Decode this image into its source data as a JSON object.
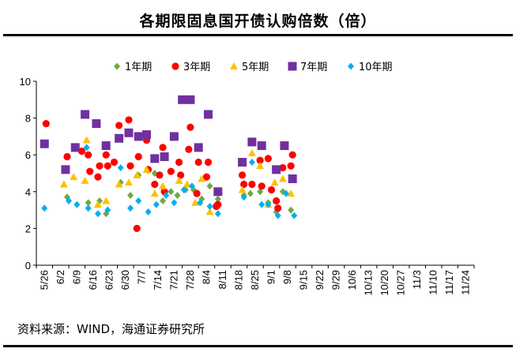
{
  "title": "各期限固息国开债认购倍数（倍）",
  "source": "资料来源：WIND，海通证券研究所",
  "chart_data": {
    "type": "scatter",
    "title": "各期限固息国开债认购倍数（倍）",
    "xlabel": "",
    "ylabel": "",
    "ylim": [
      0,
      10
    ],
    "yticks": [
      0,
      2,
      4,
      6,
      8,
      10
    ],
    "categories": [
      "5/26",
      "6/2",
      "6/9",
      "6/16",
      "6/23",
      "6/30",
      "7/7",
      "7/14",
      "7/21",
      "7/28",
      "8/4",
      "8/11",
      "8/18",
      "8/25",
      "9/1",
      "9/8",
      "9/15",
      "9/22",
      "9/29",
      "10/6",
      "10/13",
      "10/20",
      "10/27",
      "11/3",
      "11/10",
      "11/17",
      "11/24"
    ],
    "legend_position": "top",
    "series": [
      {
        "name": "1年期",
        "color": "#6FA843",
        "marker": "diamond",
        "points": [
          [
            1.4,
            3.7
          ],
          [
            2.3,
            6.2
          ],
          [
            2.7,
            3.4
          ],
          [
            3.4,
            3.5
          ],
          [
            3.8,
            2.8
          ],
          [
            4.7,
            4.5
          ],
          [
            5.3,
            3.8
          ],
          [
            5.8,
            4.9
          ],
          [
            6.8,
            5.0
          ],
          [
            7.3,
            3.5
          ],
          [
            7.8,
            4.0
          ],
          [
            8.2,
            3.8
          ],
          [
            8.7,
            4.1
          ],
          [
            9.2,
            4.1
          ],
          [
            9.7,
            3.6
          ],
          [
            10.2,
            4.3
          ],
          [
            10.7,
            3.6
          ],
          [
            12.3,
            3.8
          ],
          [
            12.7,
            3.9
          ],
          [
            13.3,
            4.0
          ],
          [
            13.8,
            3.4
          ],
          [
            14.3,
            2.9
          ],
          [
            14.7,
            4.0
          ],
          [
            15.2,
            3.0
          ]
        ]
      },
      {
        "name": "3年期",
        "color": "#FF0000",
        "marker": "circle",
        "points": [
          [
            0.1,
            7.7
          ],
          [
            1.4,
            5.9
          ],
          [
            2.3,
            6.2
          ],
          [
            2.7,
            6.0
          ],
          [
            2.8,
            5.1
          ],
          [
            3.3,
            4.8
          ],
          [
            3.4,
            5.4
          ],
          [
            3.8,
            6.0
          ],
          [
            3.9,
            5.4
          ],
          [
            4.3,
            5.6
          ],
          [
            4.6,
            7.6
          ],
          [
            5.2,
            7.9
          ],
          [
            5.3,
            5.4
          ],
          [
            5.7,
            2.0
          ],
          [
            5.8,
            5.9
          ],
          [
            6.3,
            6.8
          ],
          [
            6.4,
            5.2
          ],
          [
            6.8,
            4.4
          ],
          [
            7.1,
            4.9
          ],
          [
            7.3,
            6.4
          ],
          [
            7.4,
            4.0
          ],
          [
            7.8,
            5.1
          ],
          [
            8.3,
            5.6
          ],
          [
            8.4,
            4.9
          ],
          [
            8.9,
            6.3
          ],
          [
            9.0,
            7.5
          ],
          [
            9.4,
            3.9
          ],
          [
            9.5,
            5.6
          ],
          [
            10.0,
            4.8
          ],
          [
            10.1,
            5.6
          ],
          [
            10.6,
            3.2
          ],
          [
            10.7,
            3.3
          ],
          [
            12.2,
            4.9
          ],
          [
            12.3,
            4.4
          ],
          [
            12.8,
            4.4
          ],
          [
            13.3,
            5.7
          ],
          [
            13.4,
            4.3
          ],
          [
            13.8,
            5.8
          ],
          [
            14.0,
            4.1
          ],
          [
            14.3,
            3.5
          ],
          [
            14.4,
            3.1
          ],
          [
            14.7,
            5.3
          ],
          [
            15.2,
            5.4
          ],
          [
            15.3,
            6.0
          ]
        ]
      },
      {
        "name": "5年期",
        "color": "#FFC000",
        "marker": "triangle",
        "points": [
          [
            1.2,
            4.4
          ],
          [
            1.8,
            4.8
          ],
          [
            2.5,
            4.6
          ],
          [
            2.6,
            6.8
          ],
          [
            3.3,
            3.3
          ],
          [
            3.8,
            3.5
          ],
          [
            4.6,
            4.4
          ],
          [
            5.2,
            4.5
          ],
          [
            5.7,
            4.9
          ],
          [
            6.3,
            5.2
          ],
          [
            6.8,
            3.9
          ],
          [
            7.3,
            4.3
          ],
          [
            8.3,
            4.6
          ],
          [
            8.8,
            4.4
          ],
          [
            9.3,
            3.4
          ],
          [
            9.7,
            4.7
          ],
          [
            10.2,
            2.9
          ],
          [
            12.2,
            4.1
          ],
          [
            12.8,
            6.1
          ],
          [
            13.3,
            5.4
          ],
          [
            13.8,
            3.3
          ],
          [
            14.2,
            4.5
          ],
          [
            14.7,
            4.7
          ],
          [
            15.2,
            3.9
          ]
        ]
      },
      {
        "name": "7年期",
        "color": "#7030A0",
        "marker": "square",
        "points": [
          [
            0.0,
            6.6
          ],
          [
            1.3,
            5.2
          ],
          [
            1.9,
            6.4
          ],
          [
            2.5,
            8.2
          ],
          [
            3.2,
            7.7
          ],
          [
            3.8,
            6.5
          ],
          [
            4.6,
            6.9
          ],
          [
            5.2,
            7.2
          ],
          [
            5.8,
            7.0
          ],
          [
            6.3,
            7.1
          ],
          [
            6.8,
            5.8
          ],
          [
            7.4,
            5.9
          ],
          [
            8.0,
            7.0
          ],
          [
            8.5,
            9.0
          ],
          [
            9.0,
            9.0
          ],
          [
            9.5,
            6.4
          ],
          [
            10.1,
            8.2
          ],
          [
            10.7,
            4.0
          ],
          [
            12.2,
            5.6
          ],
          [
            12.8,
            6.7
          ],
          [
            13.4,
            6.5
          ],
          [
            14.3,
            5.2
          ],
          [
            14.8,
            6.5
          ],
          [
            15.3,
            4.7
          ]
        ]
      },
      {
        "name": "10年期",
        "color": "#00B0F0",
        "marker": "diamond",
        "points": [
          [
            0.0,
            3.1
          ],
          [
            1.5,
            3.5
          ],
          [
            2.0,
            3.3
          ],
          [
            2.6,
            6.4
          ],
          [
            2.7,
            3.1
          ],
          [
            3.3,
            2.8
          ],
          [
            3.9,
            3.0
          ],
          [
            4.7,
            5.3
          ],
          [
            5.3,
            3.1
          ],
          [
            5.8,
            3.5
          ],
          [
            6.4,
            2.9
          ],
          [
            6.9,
            3.3
          ],
          [
            7.5,
            3.8
          ],
          [
            8.0,
            3.4
          ],
          [
            8.6,
            4.1
          ],
          [
            9.1,
            4.3
          ],
          [
            9.6,
            3.4
          ],
          [
            10.2,
            3.2
          ],
          [
            10.7,
            2.8
          ],
          [
            12.3,
            3.7
          ],
          [
            12.8,
            5.6
          ],
          [
            13.4,
            3.3
          ],
          [
            13.8,
            3.3
          ],
          [
            14.4,
            2.7
          ],
          [
            14.9,
            3.9
          ],
          [
            15.4,
            2.7
          ]
        ]
      }
    ]
  }
}
